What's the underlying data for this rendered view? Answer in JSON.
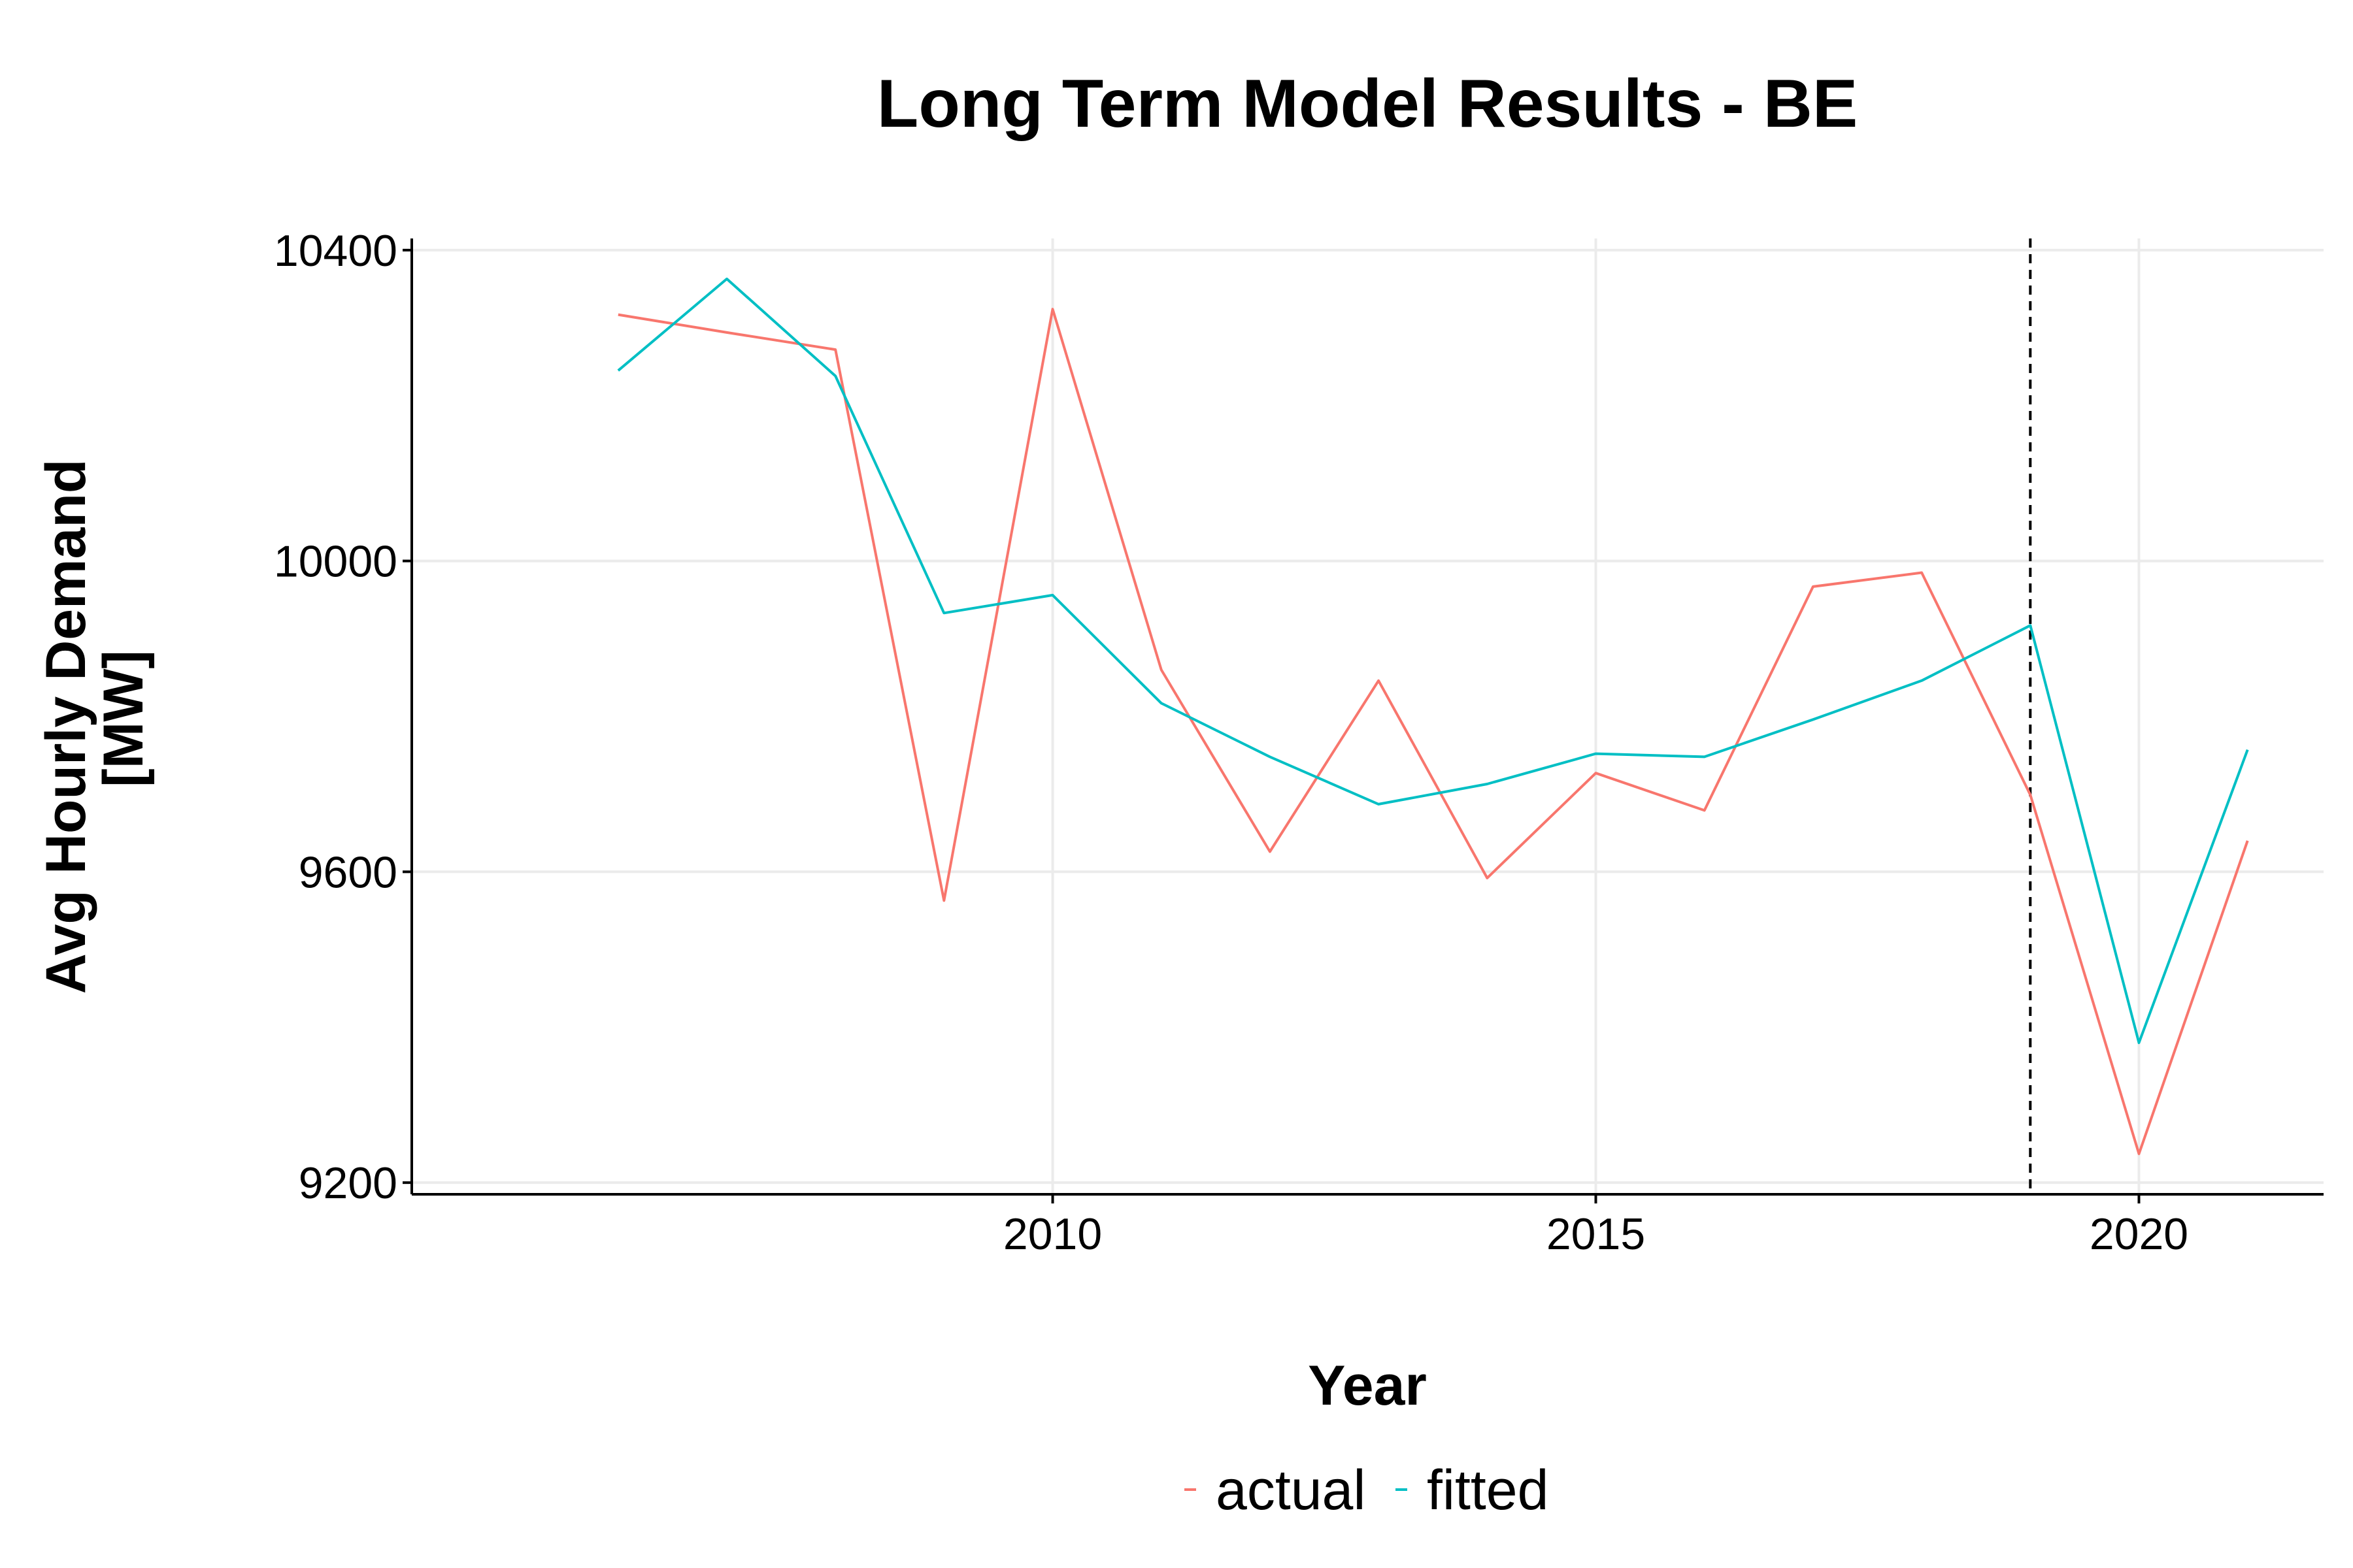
{
  "chart_data": {
    "type": "line",
    "title": "Long Term Model Results - BE",
    "xlabel": "Year",
    "ylabel_lines": [
      "Avg Hourly Demand",
      "[MW]"
    ],
    "x": [
      2006,
      2007,
      2008,
      2009,
      2010,
      2011,
      2012,
      2013,
      2014,
      2015,
      2016,
      2017,
      2018,
      2019,
      2020,
      2021
    ],
    "xlim": [
      2004.1,
      2021.7
    ],
    "ylim": [
      9185,
      10415
    ],
    "x_ticks": [
      2010,
      2015,
      2020
    ],
    "y_ticks": [
      9200,
      9600,
      10000,
      10400
    ],
    "grid": true,
    "legend_position": "bottom",
    "vline": {
      "x": 2019,
      "style": "dashed",
      "color": "#000000"
    },
    "series": [
      {
        "name": "actual",
        "color": "#F8766D",
        "values": [
          10317,
          10294,
          10272,
          9563,
          10324,
          9860,
          9626,
          9846,
          9592,
          9727,
          9679,
          9967,
          9985,
          9699,
          9237,
          9640
        ]
      },
      {
        "name": "fitted",
        "color": "#00BFC4",
        "values": [
          10245,
          10363,
          10238,
          9933,
          9956,
          9817,
          9748,
          9687,
          9713,
          9752,
          9748,
          9796,
          9846,
          9917,
          9380,
          9757
        ]
      }
    ]
  }
}
